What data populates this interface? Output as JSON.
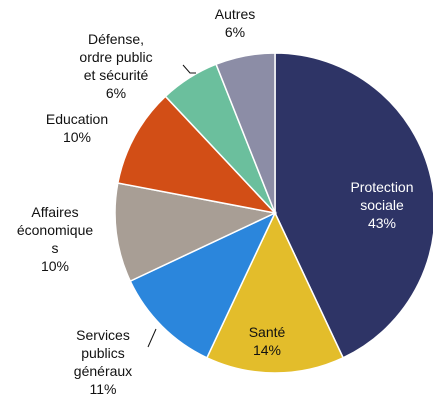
{
  "chart_data": {
    "type": "pie",
    "title": "",
    "legend": "none",
    "start_angle_deg": 0,
    "direction": "clockwise",
    "slices": [
      {
        "name": "Protection sociale",
        "label_lines": [
          "Protection",
          "sociale",
          "43%"
        ],
        "value": 43,
        "color": "#2e3466",
        "label_position": "inside",
        "label_color": "#ffffff"
      },
      {
        "name": "Santé",
        "label_lines": [
          "Santé",
          "14%"
        ],
        "value": 14,
        "color": "#e3bd2b",
        "label_position": "inside",
        "label_color": "#111111"
      },
      {
        "name": "Services publics généraux",
        "label_lines": [
          "Services",
          "publics",
          "généraux",
          "11%"
        ],
        "value": 11,
        "color": "#2b86dc",
        "label_position": "outside",
        "label_color": "#111111"
      },
      {
        "name": "Affaires économiques",
        "label_lines": [
          "Affaires",
          "économique",
          "s",
          "10%"
        ],
        "value": 10,
        "color": "#a89e95",
        "label_position": "outside",
        "label_color": "#111111"
      },
      {
        "name": "Education",
        "label_lines": [
          "Education",
          "10%"
        ],
        "value": 10,
        "color": "#d24e16",
        "label_position": "outside",
        "label_color": "#111111"
      },
      {
        "name": "Défense, ordre public et sécurité",
        "label_lines": [
          "Défense,",
          "ordre public",
          "et sécurité",
          "6%"
        ],
        "value": 6,
        "color": "#6bbf9d",
        "label_position": "outside",
        "label_color": "#111111"
      },
      {
        "name": "Autres",
        "label_lines": [
          "Autres",
          "6%"
        ],
        "value": 6,
        "color": "#8c8da6",
        "label_position": "outside",
        "label_color": "#111111"
      }
    ]
  }
}
